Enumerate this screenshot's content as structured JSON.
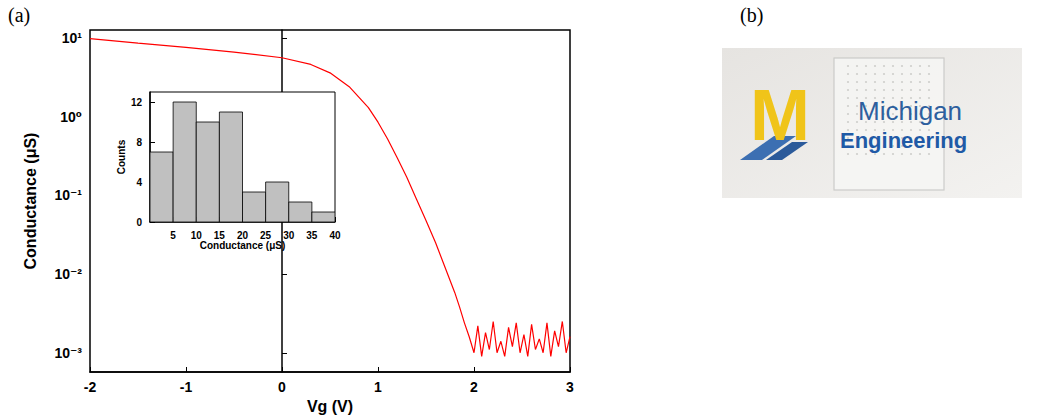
{
  "panels": [
    {
      "label": "(a)"
    },
    {
      "label": "(b)"
    }
  ],
  "chart_data": [
    {
      "type": "line",
      "color": "#ff0000",
      "log": "y",
      "x_label": "Vg (V)",
      "y_label": "Conductance (μS)",
      "x": [
        -2,
        -1.5,
        -1,
        -0.5,
        0,
        0.3,
        0.5,
        0.7,
        0.9,
        1.0,
        1.1,
        1.2,
        1.3,
        1.4,
        1.5,
        1.6,
        1.7,
        1.8,
        1.85,
        1.9,
        1.95,
        2.0,
        2.04,
        2.08,
        2.12,
        2.16,
        2.2,
        2.24,
        2.28,
        2.32,
        2.36,
        2.4,
        2.44,
        2.48,
        2.52,
        2.56,
        2.6,
        2.64,
        2.68,
        2.72,
        2.76,
        2.8,
        2.84,
        2.88,
        2.92,
        2.96,
        3.0
      ],
      "values": [
        9.8,
        8.6,
        7.6,
        6.6,
        5.6,
        4.6,
        3.6,
        2.4,
        1.3,
        0.85,
        0.52,
        0.3,
        0.17,
        0.09,
        0.048,
        0.025,
        0.012,
        0.0058,
        0.0038,
        0.0024,
        0.0016,
        0.001,
        0.0022,
        0.0009,
        0.0018,
        0.0011,
        0.0025,
        0.001,
        0.0014,
        0.0009,
        0.0021,
        0.0012,
        0.0024,
        0.001,
        0.0017,
        0.0009,
        0.0023,
        0.0011,
        0.0015,
        0.001,
        0.0024,
        0.0009,
        0.0019,
        0.0012,
        0.0025,
        0.001,
        0.0016
      ],
      "xlim": [
        -2,
        3
      ],
      "xticks": [
        -2,
        -1,
        0,
        1,
        2,
        3
      ],
      "ylim": [
        0.00057,
        12.6
      ],
      "yticks": [
        {
          "value": 0.001,
          "label": "10⁻³"
        },
        {
          "value": 0.01,
          "label": "10⁻²"
        },
        {
          "value": 0.1,
          "label": "10⁻¹"
        },
        {
          "value": 1,
          "label": "10⁰"
        },
        {
          "value": 10,
          "label": "10¹"
        }
      ]
    },
    {
      "type": "histogram",
      "color": "#c0c0c0",
      "x_label": "Conductance (μS)",
      "y_label": "Counts",
      "bins": [
        0,
        5,
        10,
        15,
        20,
        25,
        30,
        35,
        40
      ],
      "counts": [
        7,
        12,
        10,
        11,
        3,
        4,
        2,
        1
      ],
      "xlim": [
        0,
        40
      ],
      "xticks": [
        5,
        10,
        15,
        20,
        25,
        30,
        35,
        40
      ],
      "ylim": [
        0,
        13
      ],
      "yticks": [
        0,
        4,
        8,
        12
      ]
    }
  ],
  "photo": {
    "logo": "M",
    "texts": [
      "Michigan",
      "Engineering"
    ]
  }
}
